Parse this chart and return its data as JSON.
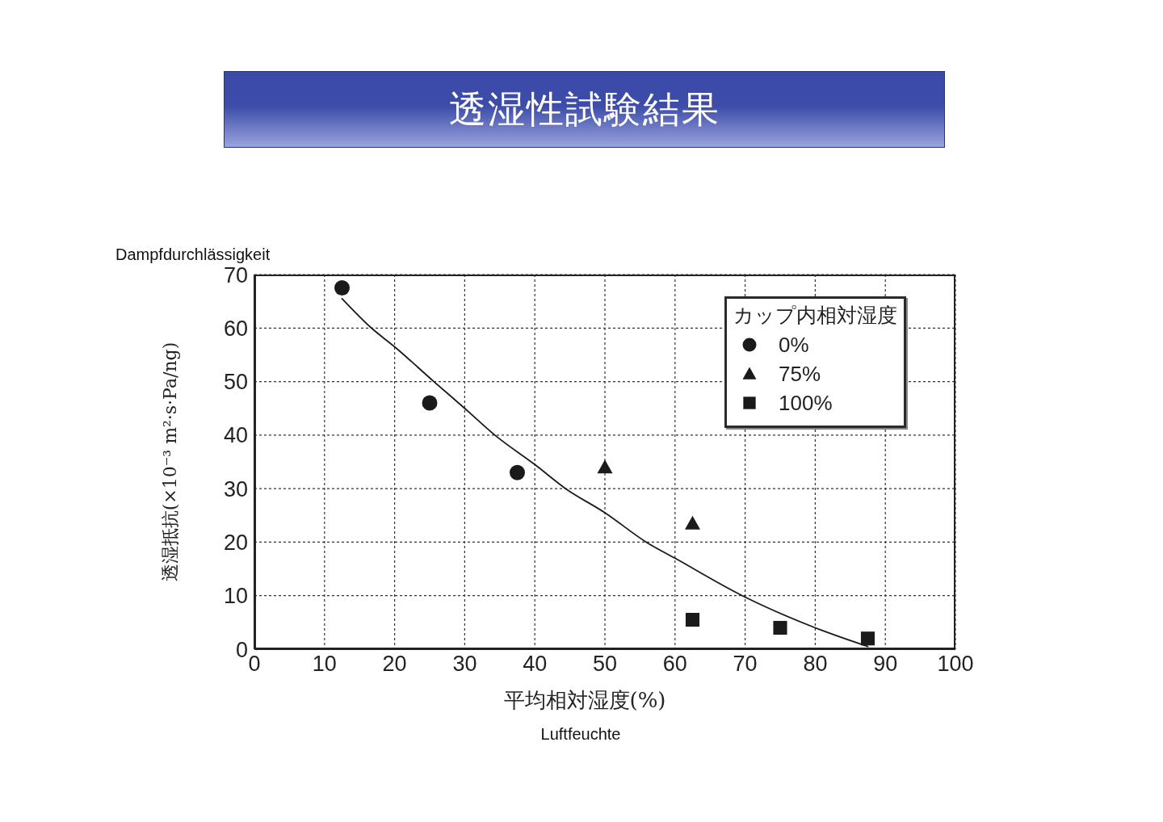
{
  "chart_data": {
    "type": "scatter",
    "title": "透湿性試験結果",
    "xlabel": "平均相対湿度(%)",
    "ylabel": "透湿抵抗(×10⁻³ m²·s·Pa/ng)",
    "legend_title": "カップ内相対湿度",
    "annotations": [
      "Dampfdurchlässigkeit",
      "Luftfeuchte"
    ],
    "series": [
      {
        "name": "0%",
        "color": "#1a1a1a",
        "marker": "circle",
        "x": [
          12.5,
          25,
          37.5
        ],
        "values": [
          67.5,
          46,
          33
        ]
      },
      {
        "name": "75%",
        "color": "#1a1a1a",
        "marker": "triangle",
        "x": [
          50,
          62.5
        ],
        "values": [
          34,
          23.5
        ]
      },
      {
        "name": "100%",
        "color": "#1a1a1a",
        "marker": "square",
        "x": [
          62.5,
          75,
          87.5
        ],
        "values": [
          5.5,
          4,
          2
        ]
      },
      {
        "type": "line",
        "color": "#1a1a1a",
        "marker": "none",
        "line_style": "solid",
        "x": [
          12.5,
          16.7,
          20,
          25.6,
          30,
          34.3,
          40,
          44.4,
          50,
          55.9,
          60,
          69.6,
          80,
          87.5
        ],
        "values": [
          65.5,
          60,
          56.5,
          50,
          45,
          40,
          34.5,
          30,
          25.5,
          20,
          17,
          10,
          4,
          0.5
        ]
      }
    ],
    "xlim": [
      0,
      100
    ],
    "xticks": [
      0,
      10,
      20,
      30,
      40,
      50,
      60,
      70,
      80,
      90,
      100
    ],
    "ylim": [
      0,
      70
    ],
    "yticks": [
      0,
      10,
      20,
      30,
      40,
      50,
      60,
      70
    ],
    "grid": true,
    "legend": "top right"
  }
}
